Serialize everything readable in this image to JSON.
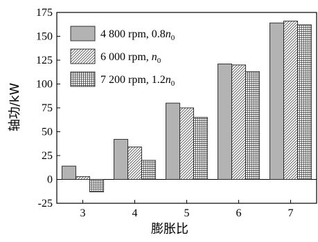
{
  "chart_data": {
    "type": "bar",
    "title": "",
    "xlabel": "膨胀比",
    "ylabel": "轴功/kW",
    "categories": [
      "3",
      "4",
      "5",
      "6",
      "7"
    ],
    "ylim": [
      -25,
      175
    ],
    "yticks": [
      -25,
      0,
      25,
      50,
      75,
      100,
      125,
      150,
      175
    ],
    "grid": false,
    "legend_position": "top-left",
    "series": [
      {
        "name": "4 800 rpm, 0.8n0",
        "legend_parts": {
          "pre": "4 800 rpm, 0.8",
          "var": "n",
          "sub": "0"
        },
        "pattern": "solid-gray",
        "color": "#b3b3b3",
        "values": [
          14,
          42,
          80,
          121,
          164
        ]
      },
      {
        "name": "6 000 rpm, n0",
        "legend_parts": {
          "pre": "6 000 rpm, ",
          "var": "n",
          "sub": "0"
        },
        "pattern": "diagonal-hatch",
        "color": "#d9d9d9",
        "values": [
          3,
          34,
          75,
          120,
          166
        ]
      },
      {
        "name": "7 200 rpm, 1.2n0",
        "legend_parts": {
          "pre": "7 200 rpm, 1.2",
          "var": "n",
          "sub": "0"
        },
        "pattern": "crosshatch",
        "color": "#a6a6a6",
        "values": [
          -13,
          20,
          65,
          113,
          162
        ]
      }
    ]
  }
}
